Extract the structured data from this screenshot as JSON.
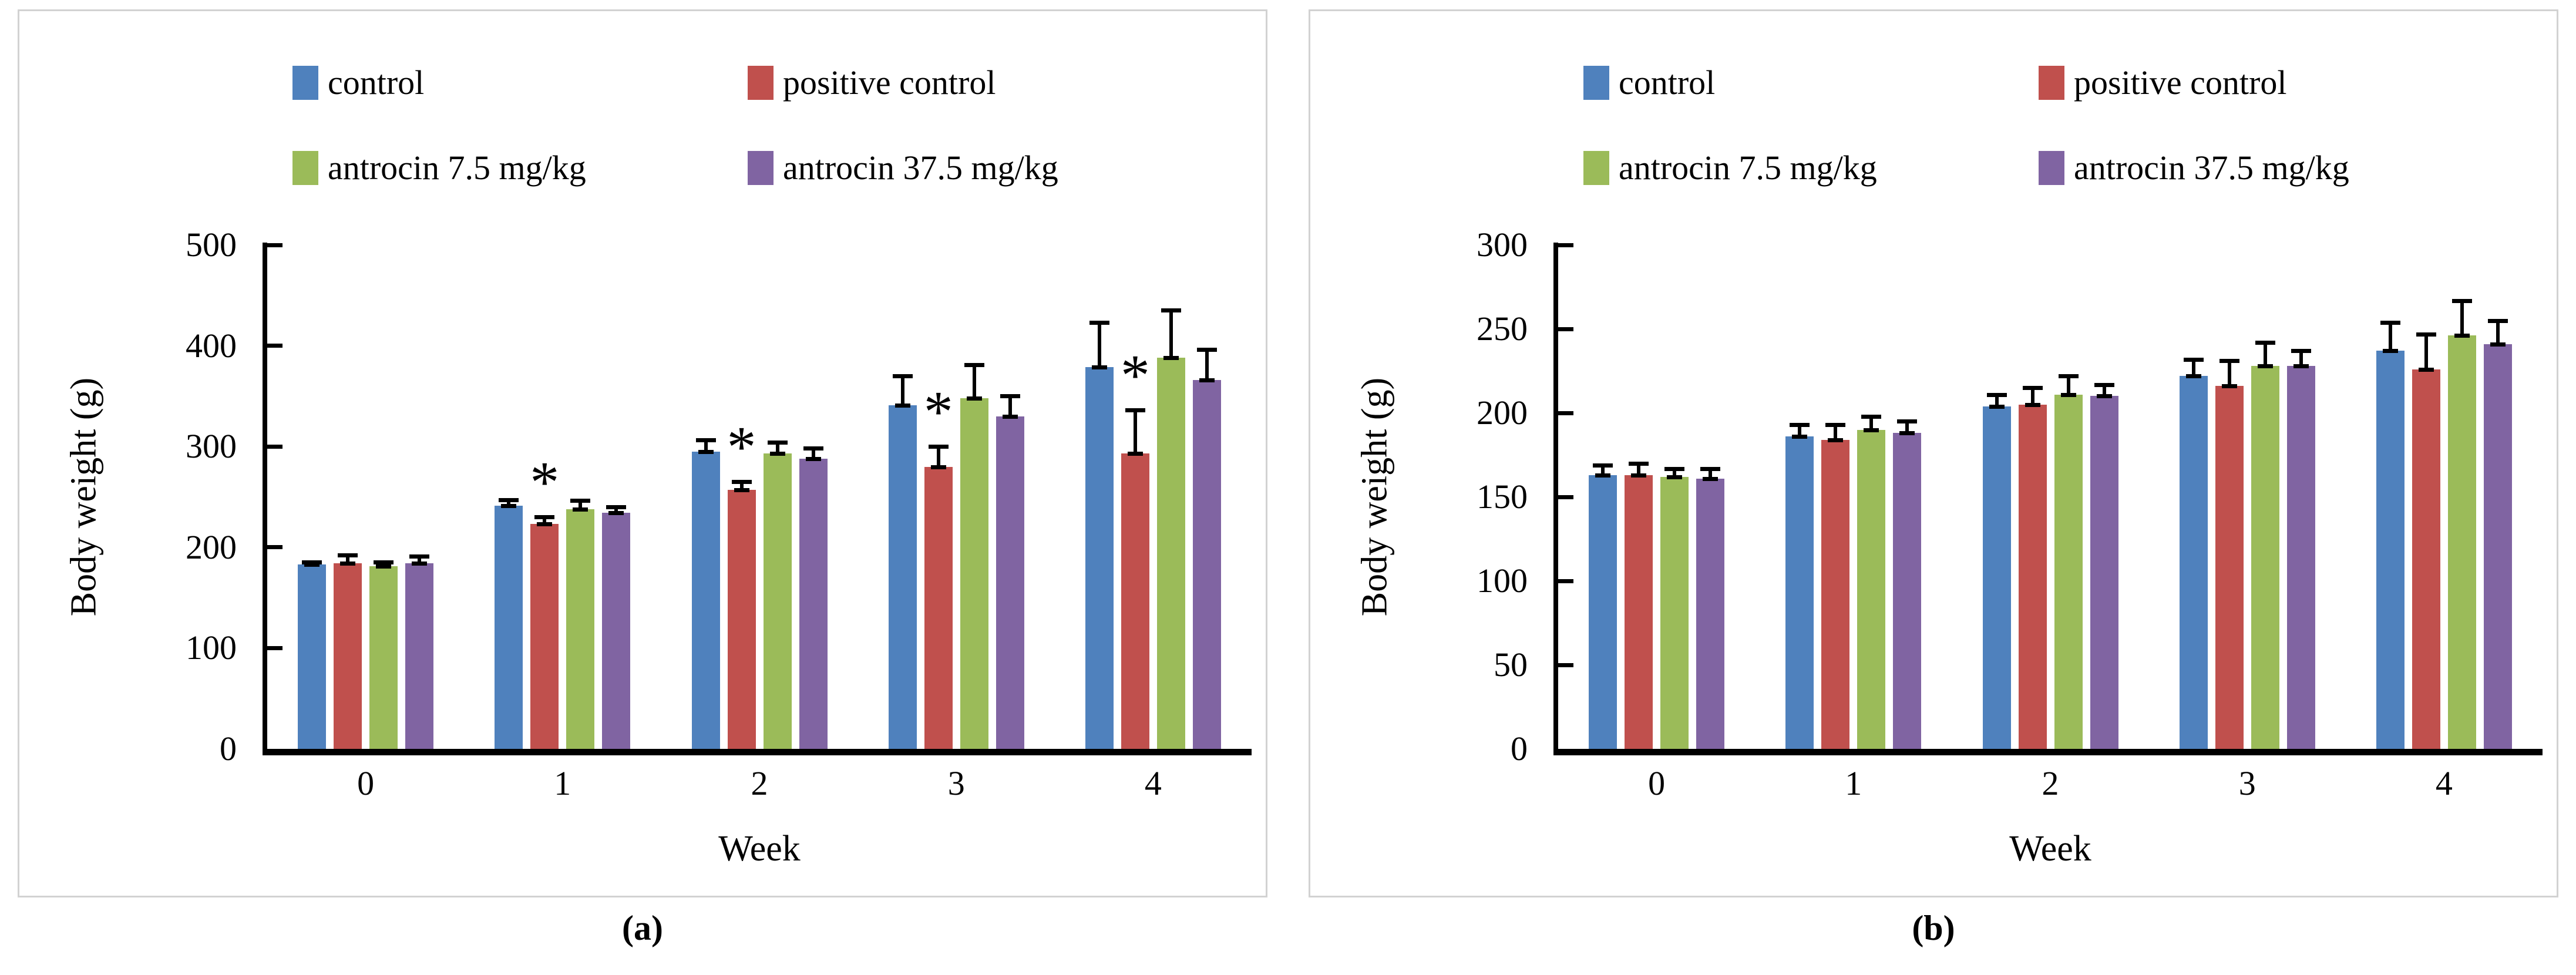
{
  "captions": {
    "a": "(a)",
    "b": "(b)"
  },
  "chart_data": [
    {
      "type": "bar",
      "panel": "a",
      "title": "",
      "xlabel": "Week",
      "ylabel": "Body weight (g)",
      "ylim": [
        0,
        500
      ],
      "yticks": [
        0,
        100,
        200,
        300,
        400,
        500
      ],
      "categories": [
        "0",
        "1",
        "2",
        "3",
        "4"
      ],
      "grid": false,
      "legend_position": "top",
      "sig_marker": "*",
      "series": [
        {
          "name": "control",
          "color": "#4F81BD",
          "values": [
            183,
            241,
            295,
            341,
            379
          ],
          "errors": [
            4,
            8,
            13,
            31,
            46
          ],
          "sig": [
            false,
            false,
            false,
            false,
            false
          ]
        },
        {
          "name": "positive control",
          "color": "#C0504D",
          "values": [
            184,
            223,
            257,
            280,
            293
          ],
          "errors": [
            10,
            9,
            10,
            22,
            45
          ],
          "sig": [
            false,
            true,
            true,
            true,
            true
          ]
        },
        {
          "name": "antrocin 7.5 mg/kg",
          "color": "#9BBB59",
          "values": [
            181,
            238,
            293,
            348,
            388
          ],
          "errors": [
            6,
            10,
            13,
            35,
            49
          ],
          "sig": [
            false,
            false,
            false,
            false,
            false
          ]
        },
        {
          "name": "antrocin 37.5 mg/kg",
          "color": "#8064A2",
          "values": [
            184,
            234,
            288,
            330,
            366
          ],
          "errors": [
            9,
            8,
            12,
            22,
            32
          ],
          "sig": [
            false,
            false,
            false,
            false,
            false
          ]
        }
      ]
    },
    {
      "type": "bar",
      "panel": "b",
      "title": "",
      "xlabel": "Week",
      "ylabel": "Body weight (g)",
      "ylim": [
        0,
        300
      ],
      "yticks": [
        0,
        50,
        100,
        150,
        200,
        250,
        300
      ],
      "categories": [
        "0",
        "1",
        "2",
        "3",
        "4"
      ],
      "grid": false,
      "legend_position": "top",
      "sig_marker": "*",
      "series": [
        {
          "name": "control",
          "color": "#4F81BD",
          "values": [
            163,
            186,
            204,
            222,
            237
          ],
          "errors": [
            7,
            8,
            8,
            11,
            18
          ],
          "sig": [
            false,
            false,
            false,
            false,
            false
          ]
        },
        {
          "name": "positive control",
          "color": "#C0504D",
          "values": [
            163,
            184,
            205,
            216,
            226
          ],
          "errors": [
            8,
            10,
            11,
            16,
            22
          ],
          "sig": [
            false,
            false,
            false,
            false,
            false
          ]
        },
        {
          "name": "antrocin 7.5 mg/kg",
          "color": "#9BBB59",
          "values": [
            162,
            190,
            211,
            228,
            246
          ],
          "errors": [
            6,
            9,
            12,
            15,
            22
          ],
          "sig": [
            false,
            false,
            false,
            false,
            false
          ]
        },
        {
          "name": "antrocin 37.5 mg/kg",
          "color": "#8064A2",
          "values": [
            161,
            188,
            210,
            228,
            241
          ],
          "errors": [
            7,
            8,
            8,
            10,
            15
          ],
          "sig": [
            false,
            false,
            false,
            false,
            false
          ]
        }
      ]
    }
  ]
}
